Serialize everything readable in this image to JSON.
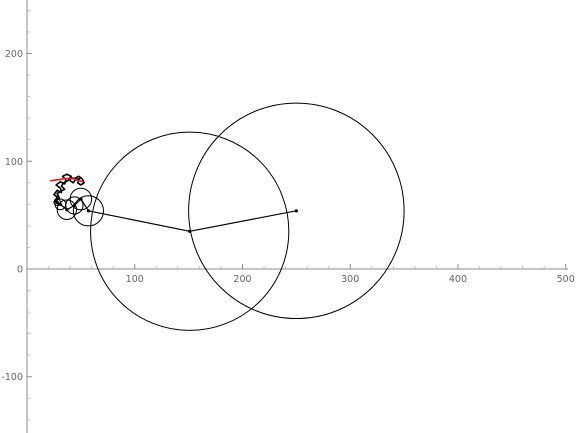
{
  "chart_data": {
    "type": "line",
    "title": "",
    "xlabel": "",
    "ylabel": "",
    "xlim": [
      -3,
      500
    ],
    "ylim": [
      -150,
      250
    ],
    "x_ticks": [
      100,
      200,
      300,
      400,
      500
    ],
    "x_tick_labels": [
      "100",
      "200",
      "300",
      "400",
      "500"
    ],
    "y_ticks": [
      -100,
      0,
      100,
      200
    ],
    "y_tick_labels": [
      "-100",
      "0",
      "100",
      "200"
    ],
    "grid": false,
    "legend": "none",
    "colors": {
      "circles": "#000000",
      "arms": "#000000",
      "trace": "#000000",
      "trace_head": "#e41a1c"
    },
    "epicycles": [
      {
        "center": [
          0,
          0
        ],
        "radius": 0
      },
      {
        "center": [
          250,
          54
        ],
        "radius": 100
      },
      {
        "center": [
          151,
          35
        ],
        "radius": 92
      },
      {
        "center": [
          57,
          54
        ],
        "radius": 14
      },
      {
        "center": [
          50,
          65
        ],
        "radius": 10
      },
      {
        "center": [
          44,
          59
        ],
        "radius": 8
      },
      {
        "center": [
          37,
          55
        ],
        "radius": 9
      },
      {
        "center": [
          31,
          60
        ],
        "radius": 5
      },
      {
        "center": [
          28,
          62
        ],
        "radius": 3
      }
    ],
    "arm_points": [
      [
        250,
        54
      ],
      [
        151,
        35
      ],
      [
        57,
        54
      ],
      [
        50,
        65
      ],
      [
        44,
        59
      ],
      [
        37,
        55
      ],
      [
        31,
        60
      ],
      [
        28,
        62
      ]
    ],
    "trace": [
      [
        28,
        61
      ],
      [
        26,
        63
      ],
      [
        28,
        67
      ],
      [
        25,
        69
      ],
      [
        28,
        73
      ],
      [
        32,
        71
      ],
      [
        31,
        75
      ],
      [
        27,
        78
      ],
      [
        31,
        81
      ],
      [
        35,
        79
      ],
      [
        36,
        83
      ],
      [
        33,
        86
      ],
      [
        37,
        88
      ],
      [
        41,
        86
      ],
      [
        40,
        82
      ],
      [
        43,
        80
      ],
      [
        45,
        83
      ],
      [
        49,
        84
      ],
      [
        47,
        80
      ],
      [
        50,
        78
      ],
      [
        53,
        80
      ],
      [
        51,
        84
      ],
      [
        48,
        86
      ],
      [
        44,
        84
      ],
      [
        40,
        85
      ],
      [
        38,
        82
      ],
      [
        34,
        80
      ],
      [
        32,
        77
      ],
      [
        35,
        74
      ],
      [
        31,
        72
      ],
      [
        28,
        70
      ],
      [
        30,
        66
      ],
      [
        26,
        64
      ],
      [
        29,
        60
      ]
    ],
    "trace_head": [
      [
        22,
        82
      ],
      [
        30,
        83
      ],
      [
        36,
        84
      ],
      [
        42,
        84
      ],
      [
        48,
        82
      ],
      [
        52,
        81
      ]
    ]
  }
}
